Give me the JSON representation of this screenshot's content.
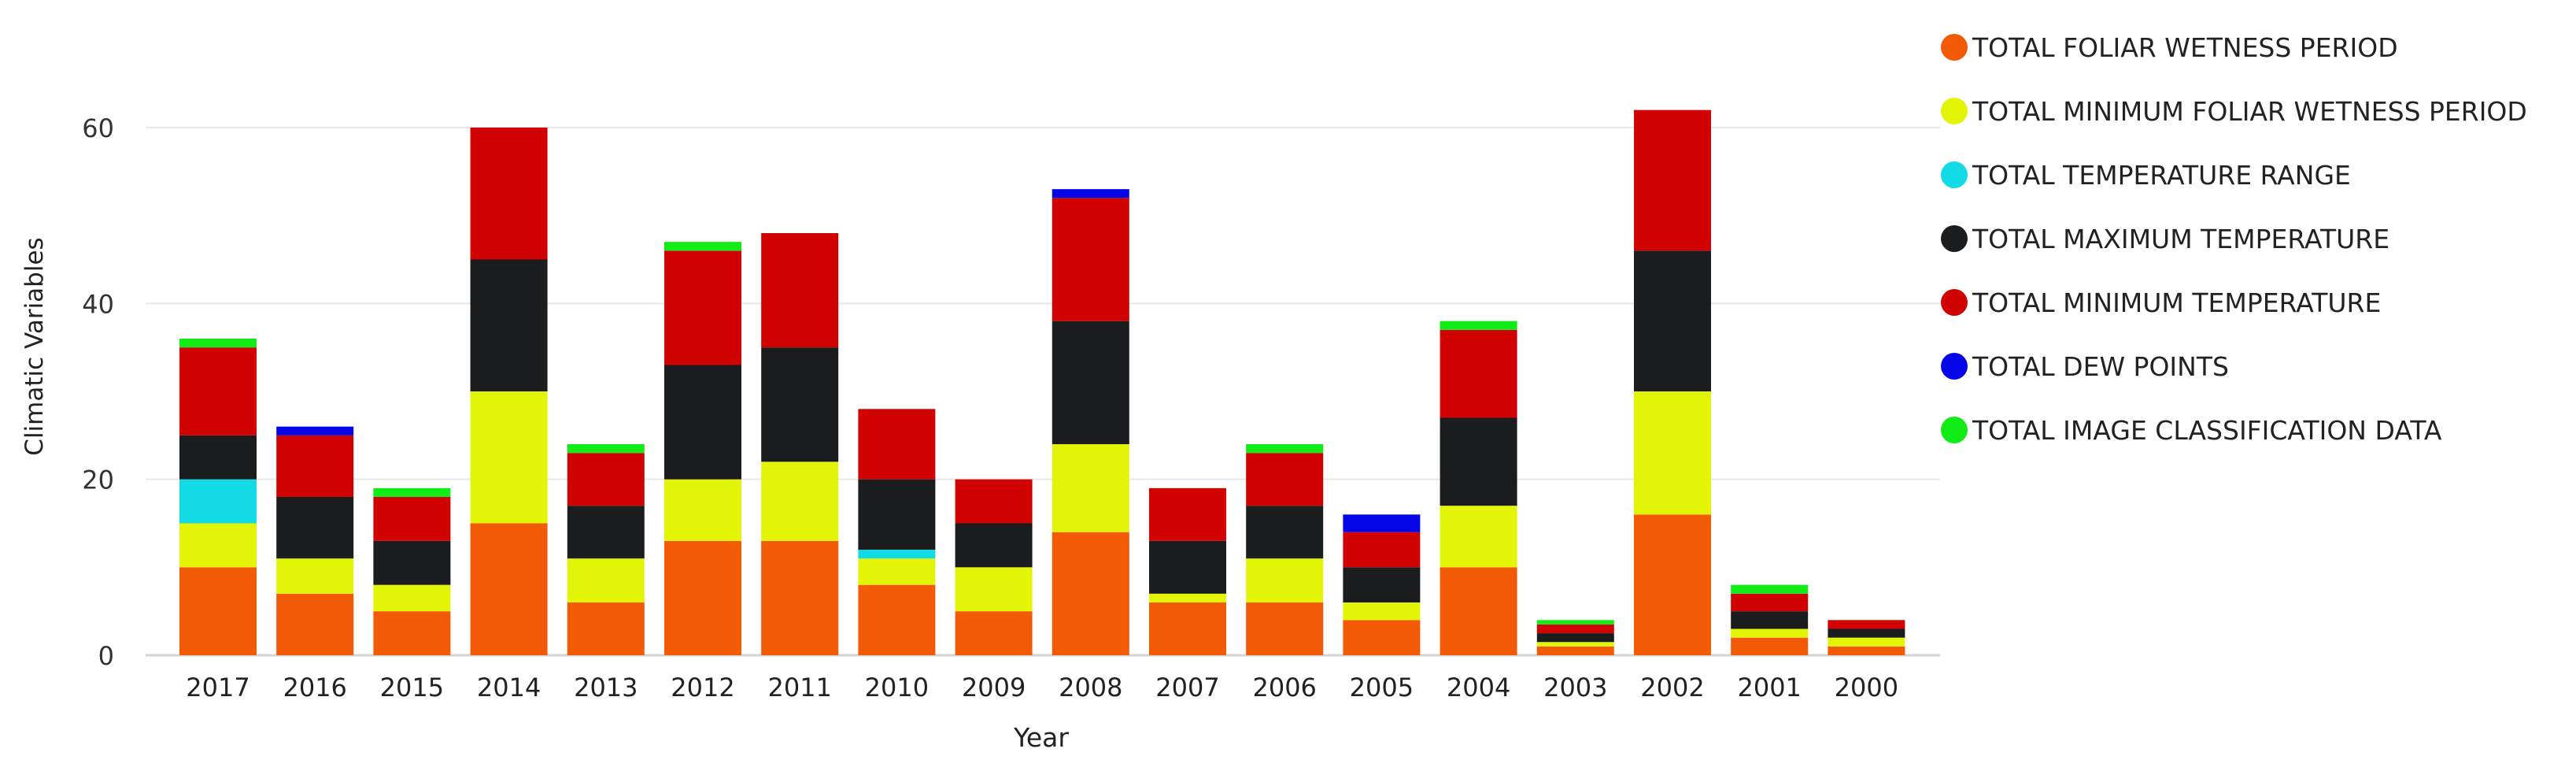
{
  "chart_data": {
    "type": "bar",
    "stacked": true,
    "title": "",
    "xlabel": "Year",
    "ylabel": "Climatic Variables",
    "ylim": [
      0,
      65
    ],
    "yticks": [
      0,
      20,
      40,
      60
    ],
    "grid": true,
    "legend_position": "right",
    "categories": [
      "2017",
      "2016",
      "2015",
      "2014",
      "2013",
      "2012",
      "2011",
      "2010",
      "2009",
      "2008",
      "2007",
      "2006",
      "2005",
      "2004",
      "2003",
      "2002",
      "2001",
      "2000"
    ],
    "series": [
      {
        "name": "TOTAL FOLIAR WETNESS PERIOD",
        "color": "#f25a05",
        "values": [
          10,
          7,
          5,
          15,
          6,
          13,
          13,
          8,
          5,
          14,
          6,
          6,
          4,
          10,
          1,
          16,
          2,
          1
        ]
      },
      {
        "name": "TOTAL MINIMUM FOLIAR WETNESS PERIOD",
        "color": "#e3f506",
        "values": [
          5,
          4,
          3,
          15,
          5,
          7,
          9,
          3,
          5,
          10,
          1,
          5,
          2,
          7,
          0.5,
          14,
          1,
          1
        ]
      },
      {
        "name": "TOTAL TEMPERATURE RANGE",
        "color": "#12dbe6",
        "values": [
          5,
          0,
          0,
          0,
          0,
          0,
          0,
          1,
          0,
          0,
          0,
          0,
          0,
          0,
          0,
          0,
          0,
          0
        ]
      },
      {
        "name": "TOTAL MAXIMUM TEMPERATURE",
        "color": "#1b1c1e",
        "values": [
          5,
          7,
          5,
          15,
          6,
          13,
          13,
          8,
          5,
          14,
          6,
          6,
          4,
          10,
          1,
          16,
          2,
          1
        ]
      },
      {
        "name": "TOTAL MINIMUM TEMPERATURE",
        "color": "#d00202",
        "values": [
          10,
          7,
          5,
          15,
          6,
          13,
          13,
          8,
          5,
          14,
          6,
          6,
          4,
          10,
          1,
          16,
          2,
          1
        ]
      },
      {
        "name": "TOTAL DEW POINTS",
        "color": "#0505e8",
        "values": [
          0,
          1,
          0,
          0,
          0,
          0,
          0,
          0,
          0,
          1,
          0,
          0,
          2,
          0,
          0,
          0,
          0,
          0
        ]
      },
      {
        "name": "TOTAL IMAGE CLASSIFICATION DATA",
        "color": "#12ec16",
        "values": [
          1,
          0,
          1,
          0,
          1,
          1,
          0,
          0,
          0,
          0,
          0,
          1,
          0,
          1,
          0.5,
          0,
          1,
          0
        ]
      }
    ]
  }
}
